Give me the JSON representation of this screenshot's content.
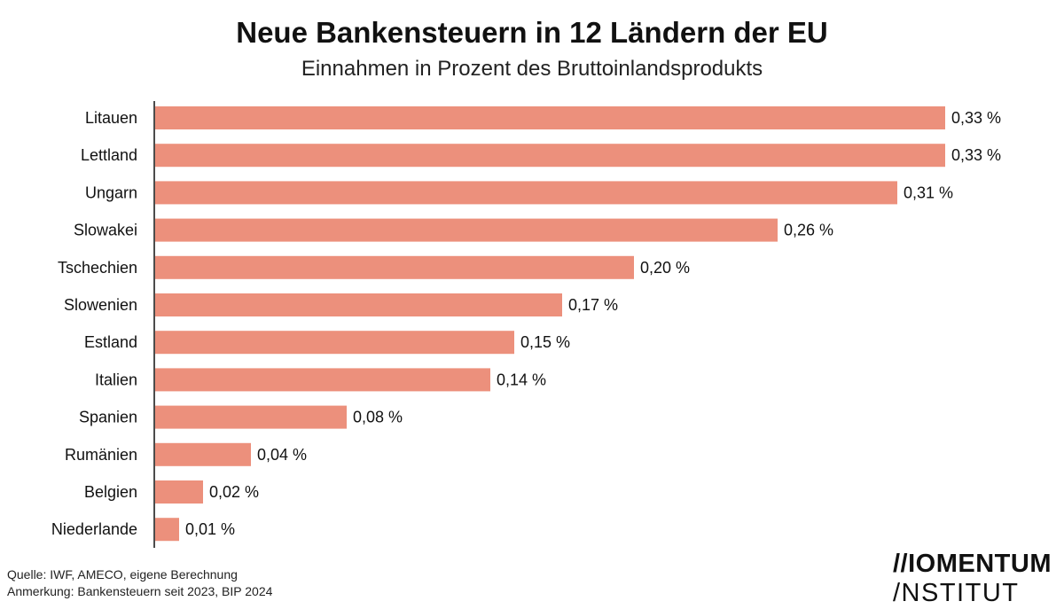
{
  "title": "Neue Bankensteuern in 12 Ländern der EU",
  "subtitle": "Einnahmen in Prozent des Bruttoinlandsprodukts",
  "source": "Quelle: IWF, AMECO, eigene Berechnung",
  "note": "Anmerkung: Bankensteuern seit 2023, BIP 2024",
  "logo": {
    "line1": "//IOMENTUM",
    "line2": "/NSTITUT"
  },
  "colors": {
    "bar": "#ec907c",
    "axis": "#111111"
  },
  "chart_data": {
    "type": "bar",
    "orientation": "horizontal",
    "title": "Neue Bankensteuern in 12 Ländern der EU",
    "subtitle": "Einnahmen in Prozent des Bruttoinlandsprodukts",
    "xlabel": "",
    "ylabel": "",
    "grid": false,
    "categories": [
      "Litauen",
      "Lettland",
      "Ungarn",
      "Slowakei",
      "Tschechien",
      "Slowenien",
      "Estland",
      "Italien",
      "Spanien",
      "Rumänien",
      "Belgien",
      "Niederlande"
    ],
    "values": [
      0.33,
      0.33,
      0.31,
      0.26,
      0.2,
      0.17,
      0.15,
      0.14,
      0.08,
      0.04,
      0.02,
      0.01
    ],
    "value_labels": [
      "0,33 %",
      "0,33 %",
      "0,31 %",
      "0,26 %",
      "0,20 %",
      "0,17 %",
      "0,15 %",
      "0,14 %",
      "0,08 %",
      "0,04 %",
      "0,02 %",
      "0,01 %"
    ]
  }
}
